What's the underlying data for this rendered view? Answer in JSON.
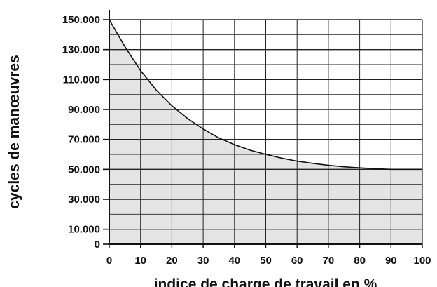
{
  "chart_data": {
    "type": "area",
    "title": "",
    "xlabel": "indice de charge de travail en %",
    "ylabel": "cycles de manœuvres",
    "xlim": [
      0,
      100
    ],
    "ylim": [
      0,
      150000
    ],
    "x_ticks": [
      0,
      10,
      20,
      30,
      40,
      50,
      60,
      70,
      80,
      90,
      100
    ],
    "x_tick_labels": [
      "0",
      "10",
      "20",
      "30",
      "40",
      "50",
      "60",
      "70",
      "80",
      "90",
      "100"
    ],
    "y_ticks": [
      0,
      10000,
      30000,
      50000,
      70000,
      90000,
      110000,
      130000,
      150000
    ],
    "y_tick_labels": [
      "0",
      "10.000",
      "30.000",
      "50.000",
      "70.000",
      "90.000",
      "110.000",
      "130.000",
      "150.000"
    ],
    "grid": true,
    "fill_color": "#e4e4e4",
    "line_color": "#111111",
    "series": [
      {
        "x": [
          0,
          5,
          10,
          15,
          20,
          25,
          30,
          35,
          40,
          45,
          50,
          55,
          60,
          65,
          70,
          75,
          80,
          85,
          90,
          95,
          100
        ],
        "values": [
          150000,
          132000,
          116000,
          103000,
          92500,
          84000,
          77000,
          71000,
          66500,
          62800,
          60000,
          57500,
          55500,
          54000,
          52700,
          51700,
          51000,
          50400,
          50000,
          50000,
          50000
        ]
      }
    ]
  }
}
